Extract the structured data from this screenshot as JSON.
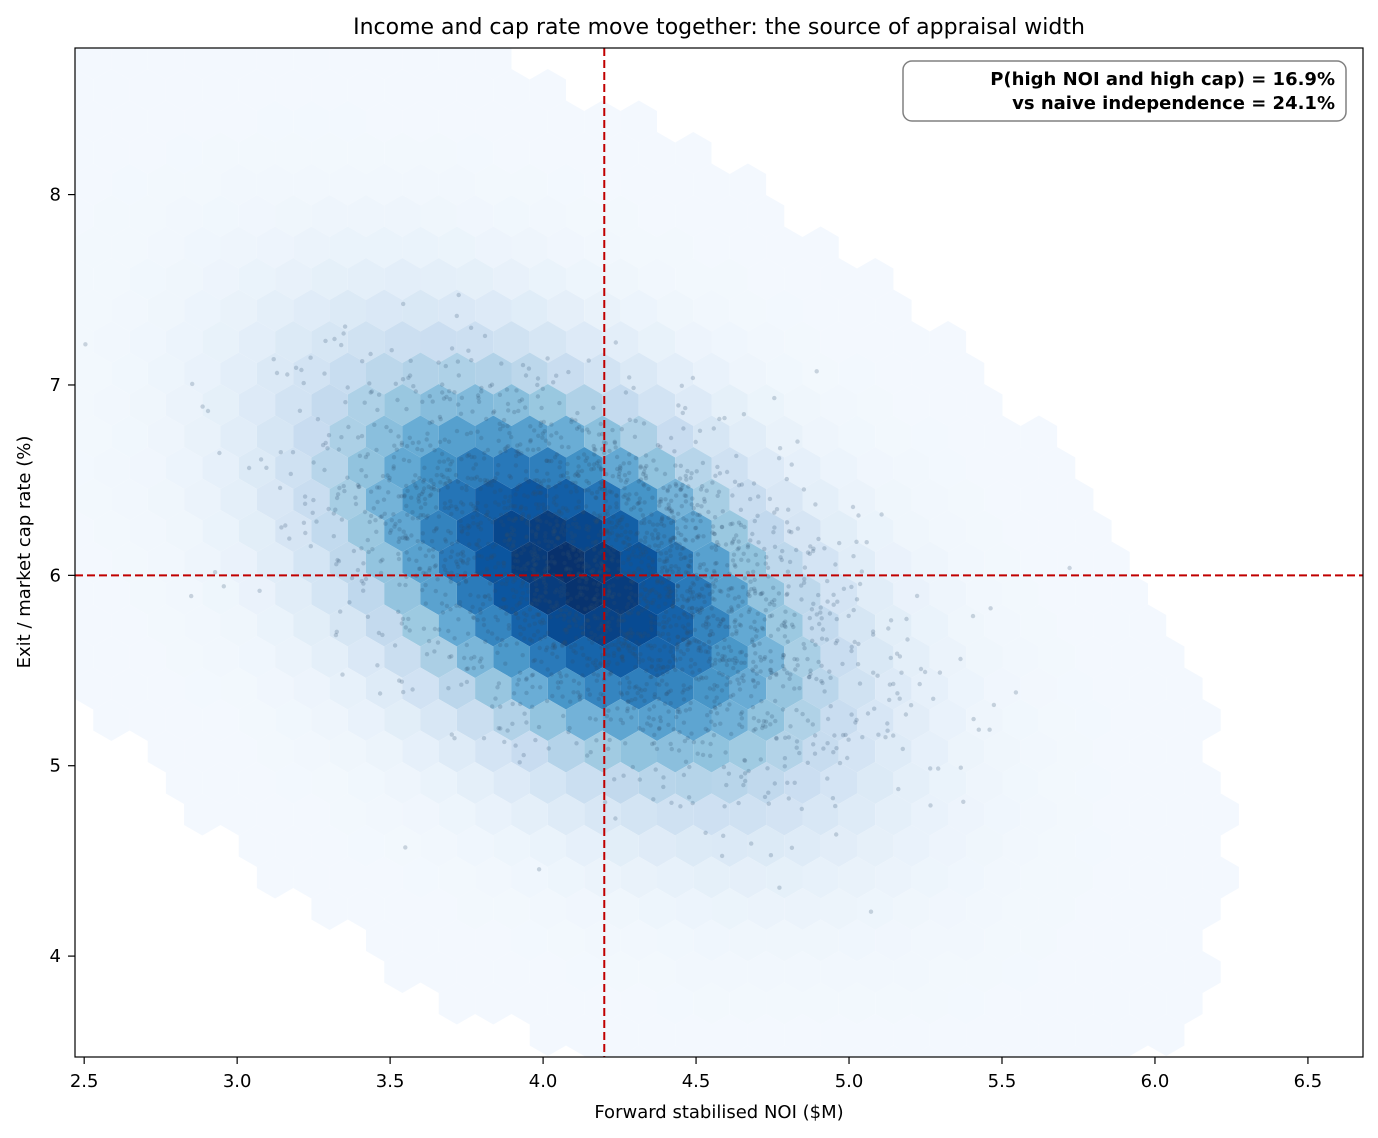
{
  "chart_data": {
    "type": "scatter",
    "title": "Income and cap rate move together: the source of appraisal width",
    "xlabel": "Forward stabilised NOI  ($M)",
    "ylabel": "Exit / market cap rate  (%)",
    "xlim": [
      2.47,
      6.68
    ],
    "ylim": [
      3.47,
      8.77
    ],
    "xticks": [
      2.5,
      3.0,
      3.5,
      4.0,
      4.5,
      5.0,
      5.5,
      6.0,
      6.5
    ],
    "xtick_labels": [
      "2.5",
      "3.0",
      "3.5",
      "4.0",
      "4.5",
      "5.0",
      "5.5",
      "6.0",
      "6.5"
    ],
    "yticks": [
      4,
      5,
      6,
      7,
      8
    ],
    "ytick_labels": [
      "4",
      "5",
      "6",
      "7",
      "8"
    ],
    "grid": false,
    "colormap": "Blues",
    "density": {
      "kind": "hexbin",
      "center": [
        4.1,
        6.0
      ],
      "sd_x": 0.42,
      "sd_y": 0.58,
      "correlation": -0.5
    },
    "scatter_sample": {
      "color": "#2f4f6f",
      "center": [
        4.2,
        6.0
      ],
      "sd_x": 0.42,
      "sd_y": 0.5,
      "correlation": -0.5
    },
    "reference_lines": [
      {
        "orientation": "vertical",
        "value": 4.2,
        "color": "#c00000",
        "style": "dashed"
      },
      {
        "orientation": "horizontal",
        "value": 6.0,
        "color": "#c00000",
        "style": "dashed"
      }
    ],
    "annotation": {
      "lines": [
        "P(high NOI and high cap) = 16.9%",
        "vs naive independence = 24.1%"
      ],
      "placement": "top-right",
      "border_color": "#808080"
    }
  }
}
